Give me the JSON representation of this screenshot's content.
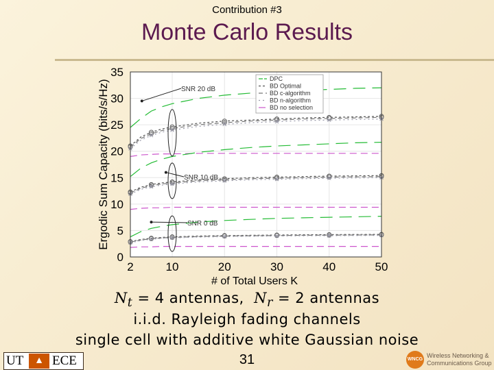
{
  "header": {
    "contribution": "Contribution #3",
    "title": "Monte Carlo Results"
  },
  "chart_data": {
    "type": "line",
    "xlabel": "# of Total Users K",
    "ylabel": "Ergodic Sum Capacity (bits/s/Hz)",
    "xlim": [
      2,
      50
    ],
    "ylim": [
      0,
      35
    ],
    "xticks": [
      10,
      20,
      30,
      40,
      50
    ],
    "yticks": [
      0,
      5,
      10,
      15,
      20,
      25,
      30,
      35
    ],
    "xtick_first_label": "2",
    "legend_position": "top-right",
    "legend": [
      "DPC",
      "BD Optimal",
      "BD c-algorithm",
      "BD n-algorithm",
      "BD no selection"
    ],
    "colors": {
      "DPC": "#22bb33",
      "BD Optimal": "#555555",
      "BD c-algorithm": "#777777",
      "BD n-algorithm": "#9a9aaa",
      "BD no selection": "#cc55cc"
    },
    "x": [
      2,
      4,
      6,
      8,
      10,
      15,
      20,
      25,
      30,
      35,
      40,
      45,
      50
    ],
    "snr_groups": [
      {
        "label": "SNR 20 dB",
        "series": [
          {
            "name": "DPC",
            "values": [
              24.5,
              26.2,
              27.6,
              28.4,
              29.0,
              30.0,
              30.6,
              31.0,
              31.3,
              31.5,
              31.7,
              31.9,
              32.0
            ]
          },
          {
            "name": "BD Optimal",
            "values": [
              21.0,
              22.7,
              23.6,
              24.2,
              24.6,
              25.3,
              25.7,
              25.9,
              26.1,
              26.3,
              26.4,
              26.5,
              26.6
            ]
          },
          {
            "name": "BD c-algorithm",
            "values": [
              20.8,
              22.4,
              23.3,
              23.9,
              24.3,
              25.0,
              25.4,
              25.7,
              25.9,
              26.1,
              26.2,
              26.3,
              26.4
            ]
          },
          {
            "name": "BD n-algorithm",
            "values": [
              20.5,
              22.1,
              23.0,
              23.6,
              24.0,
              24.7,
              25.1,
              25.4,
              25.6,
              25.8,
              25.9,
              26.0,
              26.1
            ]
          },
          {
            "name": "BD no selection",
            "values": [
              19.0,
              19.3,
              19.4,
              19.5,
              19.5,
              19.6,
              19.6,
              19.6,
              19.6,
              19.6,
              19.6,
              19.6,
              19.6
            ]
          }
        ]
      },
      {
        "label": "SNR 10 dB",
        "series": [
          {
            "name": "DPC",
            "values": [
              15.2,
              16.8,
              17.8,
              18.5,
              19.0,
              19.8,
              20.3,
              20.7,
              21.0,
              21.2,
              21.4,
              21.6,
              21.7
            ]
          },
          {
            "name": "BD Optimal",
            "values": [
              12.3,
              13.2,
              13.7,
              14.0,
              14.2,
              14.6,
              14.8,
              15.0,
              15.1,
              15.2,
              15.3,
              15.35,
              15.4
            ]
          },
          {
            "name": "BD c-algorithm",
            "values": [
              12.1,
              13.0,
              13.5,
              13.8,
              14.0,
              14.4,
              14.6,
              14.8,
              14.9,
              15.0,
              15.1,
              15.15,
              15.2
            ]
          },
          {
            "name": "BD n-algorithm",
            "values": [
              11.9,
              12.8,
              13.3,
              13.6,
              13.8,
              14.2,
              14.4,
              14.6,
              14.7,
              14.8,
              14.9,
              14.95,
              15.0
            ]
          },
          {
            "name": "BD no selection",
            "values": [
              9.0,
              9.2,
              9.3,
              9.3,
              9.4,
              9.4,
              9.4,
              9.4,
              9.4,
              9.4,
              9.4,
              9.4,
              9.4
            ]
          }
        ]
      },
      {
        "label": "SNR 0 dB",
        "series": [
          {
            "name": "DPC",
            "values": [
              3.8,
              4.8,
              5.4,
              5.8,
              6.1,
              6.6,
              6.9,
              7.1,
              7.3,
              7.4,
              7.5,
              7.6,
              7.7
            ]
          },
          {
            "name": "BD Optimal",
            "values": [
              2.9,
              3.3,
              3.55,
              3.7,
              3.8,
              3.95,
              4.05,
              4.1,
              4.15,
              4.2,
              4.22,
              4.25,
              4.27
            ]
          },
          {
            "name": "BD c-algorithm",
            "values": [
              2.8,
              3.2,
              3.45,
              3.6,
              3.7,
              3.85,
              3.95,
              4.0,
              4.05,
              4.1,
              4.12,
              4.15,
              4.17
            ]
          },
          {
            "name": "BD n-algorithm",
            "values": [
              2.7,
              3.1,
              3.35,
              3.5,
              3.6,
              3.75,
              3.85,
              3.9,
              3.95,
              4.0,
              4.02,
              4.05,
              4.07
            ]
          },
          {
            "name": "BD no selection",
            "values": [
              1.8,
              1.9,
              1.9,
              2.0,
              2.0,
              2.0,
              2.0,
              2.0,
              2.0,
              2.0,
              2.0,
              2.0,
              2.0
            ]
          }
        ]
      }
    ]
  },
  "captions": {
    "line1_nt": "N",
    "line1_nt_sub": "t",
    "line1_mid": " = 4 antennas,  ",
    "line1_nr": "N",
    "line1_nr_sub": "r",
    "line1_end": " = 2 antennas",
    "line2": "i.i.d. Rayleigh fading channels",
    "line3": "single cell with additive white Gaussian noise"
  },
  "footer": {
    "page_number": "31",
    "ut_logo_text": "UT",
    "ut_logo_text2": "ECE",
    "wncg_badge": "WNCG",
    "wncg_line1": "Wireless Networking &",
    "wncg_line2": "Communications Group"
  }
}
